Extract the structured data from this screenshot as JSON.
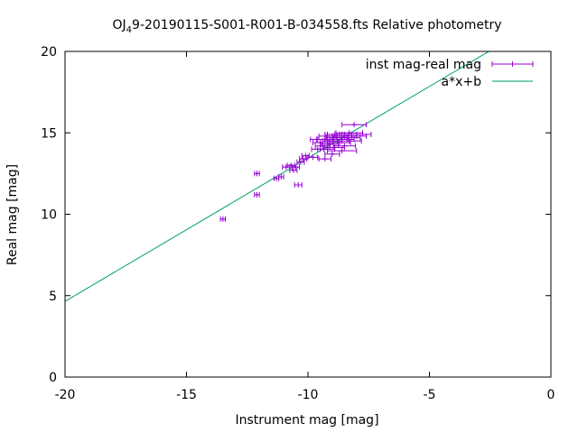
{
  "chart_data": {
    "type": "scatter",
    "title": "OJ",
    "title_sub": "4",
    "title_rest": "9-20190115-S001-R001-B-034558.fts Relative photometry",
    "xlabel": "Instrument mag [mag]",
    "ylabel": "Real mag [mag]",
    "xlim": [
      -20,
      0
    ],
    "ylim": [
      0,
      20
    ],
    "xticks": [
      -20,
      -15,
      -10,
      -5,
      0
    ],
    "yticks": [
      0,
      5,
      10,
      15,
      20
    ],
    "xtick_labels": [
      "-20",
      "-15",
      "-10",
      "-5",
      "0"
    ],
    "ytick_labels": [
      "0",
      "5",
      "10",
      "15",
      "20"
    ],
    "grid": false,
    "legend_position": "top-right",
    "legend": [
      {
        "label": "inst mag-real mag",
        "color": "#9400d3",
        "marker": "errorbar"
      },
      {
        "label": "a*x+b",
        "color": "#009e73",
        "marker": "line"
      }
    ],
    "series": [
      {
        "name": "inst mag-real mag",
        "color": "#9400d3",
        "points": [
          {
            "x": -13.5,
            "y": 9.7,
            "xerr": 0.1
          },
          {
            "x": -12.1,
            "y": 12.5,
            "xerr": 0.1
          },
          {
            "x": -12.1,
            "y": 11.2,
            "xerr": 0.1
          },
          {
            "x": -11.3,
            "y": 12.2,
            "xerr": 0.1
          },
          {
            "x": -11.1,
            "y": 12.3,
            "xerr": 0.1
          },
          {
            "x": -10.9,
            "y": 12.9,
            "xerr": 0.15
          },
          {
            "x": -10.7,
            "y": 13.0,
            "xerr": 0.15
          },
          {
            "x": -10.6,
            "y": 12.7,
            "xerr": 0.15
          },
          {
            "x": -10.5,
            "y": 12.9,
            "xerr": 0.15
          },
          {
            "x": -10.4,
            "y": 11.8,
            "xerr": 0.15
          },
          {
            "x": -10.3,
            "y": 13.2,
            "xerr": 0.15
          },
          {
            "x": -10.2,
            "y": 13.4,
            "xerr": 0.15
          },
          {
            "x": -10.1,
            "y": 13.6,
            "xerr": 0.15
          },
          {
            "x": -9.8,
            "y": 13.5,
            "xerr": 0.2
          },
          {
            "x": -9.6,
            "y": 14.0,
            "xerr": 0.25
          },
          {
            "x": -9.5,
            "y": 14.4,
            "xerr": 0.3
          },
          {
            "x": -9.4,
            "y": 14.2,
            "xerr": 0.3
          },
          {
            "x": -9.3,
            "y": 13.4,
            "xerr": 0.25
          },
          {
            "x": -9.3,
            "y": 14.6,
            "xerr": 0.35
          },
          {
            "x": -9.2,
            "y": 14.8,
            "xerr": 0.35
          },
          {
            "x": -9.1,
            "y": 14.3,
            "xerr": 0.35
          },
          {
            "x": -9.0,
            "y": 13.7,
            "xerr": 0.3
          },
          {
            "x": -9.0,
            "y": 14.5,
            "xerr": 0.4
          },
          {
            "x": -8.9,
            "y": 14.1,
            "xerr": 0.4
          },
          {
            "x": -8.8,
            "y": 14.7,
            "xerr": 0.45
          },
          {
            "x": -8.7,
            "y": 14.4,
            "xerr": 0.45
          },
          {
            "x": -8.7,
            "y": 14.9,
            "xerr": 0.5
          },
          {
            "x": -8.6,
            "y": 14.6,
            "xerr": 0.5
          },
          {
            "x": -8.5,
            "y": 14.8,
            "xerr": 0.5
          },
          {
            "x": -8.5,
            "y": 14.2,
            "xerr": 0.45
          },
          {
            "x": -8.4,
            "y": 14.7,
            "xerr": 0.55
          },
          {
            "x": -8.3,
            "y": 15.0,
            "xerr": 0.55
          },
          {
            "x": -8.3,
            "y": 14.5,
            "xerr": 0.5
          },
          {
            "x": -8.2,
            "y": 14.8,
            "xerr": 0.6
          },
          {
            "x": -8.1,
            "y": 15.5,
            "xerr": 0.5
          },
          {
            "x": -8.6,
            "y": 13.9,
            "xerr": 0.6
          },
          {
            "x": -9.6,
            "y": 14.6,
            "xerr": 0.3
          },
          {
            "x": -9.2,
            "y": 14.0,
            "xerr": 0.3
          },
          {
            "x": -8.9,
            "y": 14.9,
            "xerr": 0.4
          },
          {
            "x": -8.0,
            "y": 14.9,
            "xerr": 0.6
          }
        ]
      },
      {
        "name": "a*x+b",
        "color": "#009e73",
        "slope": 0.88,
        "intercept": 22.25,
        "x_range": [
          -20,
          -2.5
        ]
      }
    ]
  }
}
